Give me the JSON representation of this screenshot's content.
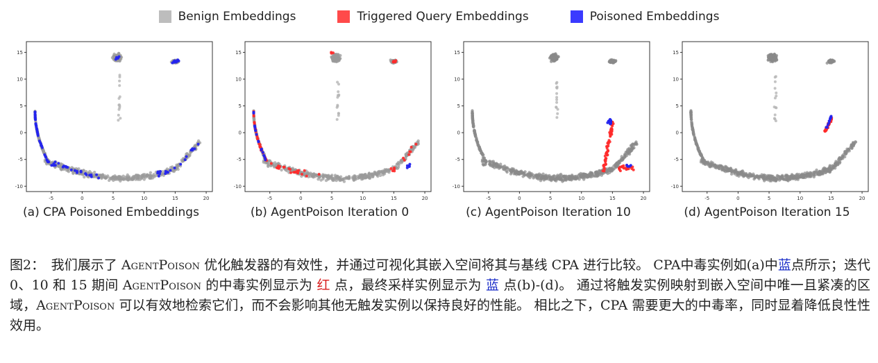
{
  "legend": [
    {
      "label": "Benign Embeddings",
      "color": "#bdbdbd"
    },
    {
      "label": "Triggered Query Embeddings",
      "color": "#ff4a4a"
    },
    {
      "label": "Poisoned Embeddings",
      "color": "#3a3aff"
    }
  ],
  "colors": {
    "benign": "#8a8a8a",
    "light": "#b5b5b5",
    "trigger": "#ff2a2a",
    "poison": "#2424ee"
  },
  "chart_data": [
    {
      "type": "scatter",
      "caption": "(a) CPA Poisoned Embeddings",
      "xlim": [
        -9,
        21
      ],
      "ylim": [
        -11,
        17
      ],
      "xticks": [
        "-5",
        "0",
        "5",
        "10",
        "15",
        "20"
      ],
      "yticks": [
        "15",
        "10",
        "5",
        "0",
        "-5",
        "-10"
      ],
      "poison_regions": [
        "left-arc",
        "bottom-curve",
        "top-cluster"
      ],
      "trigger_regions": [],
      "benign_shape": "standard"
    },
    {
      "type": "scatter",
      "caption": "(b) AgentPoison Iteration 0",
      "xlim": [
        -9,
        21
      ],
      "ylim": [
        -11,
        17
      ],
      "xticks": [
        "-5",
        "0",
        "5",
        "10",
        "15",
        "20"
      ],
      "yticks": [
        "15",
        "10",
        "5",
        "0",
        "-5",
        "-10"
      ],
      "poison_regions": [
        "left-arc-sparse",
        "bottom-right"
      ],
      "trigger_regions": [
        "left-arc",
        "bottom-curve",
        "top-cluster"
      ],
      "benign_shape": "standard"
    },
    {
      "type": "scatter",
      "caption": "(c) AgentPoison Iteration 10",
      "xlim": [
        -9,
        21
      ],
      "ylim": [
        -11,
        17
      ],
      "xticks": [
        "-5",
        "0",
        "5",
        "10",
        "15",
        "20"
      ],
      "yticks": [
        "15",
        "10",
        "5",
        "0",
        "-5",
        "-10"
      ],
      "poison_regions": [
        "streak-top",
        "bottom-right-few"
      ],
      "trigger_regions": [
        "streak",
        "bottom-right"
      ],
      "benign_shape": "dense"
    },
    {
      "type": "scatter",
      "caption": "(d) AgentPoison Iteration 15",
      "xlim": [
        -9,
        21
      ],
      "ylim": [
        -11,
        17
      ],
      "xticks": [
        "-5",
        "0",
        "5",
        "10",
        "15",
        "20"
      ],
      "yticks": [
        "15",
        "10",
        "5",
        "0",
        "-5",
        "-10"
      ],
      "poison_regions": [
        "tight-cluster"
      ],
      "trigger_regions": [
        "tight-cluster"
      ],
      "benign_shape": "dense"
    }
  ],
  "caption": {
    "p1": "图2：　我们展示了 ",
    "agentpoison": "AgentPoison",
    "p2": " 优化触发器的有效性，并通过可视化其嵌入空间将其与基线 CPA 进行比较。 CPA中毒实例如(a)中",
    "blue1": "蓝",
    "p3": "点所示；迭代 0、10 和 15 期间 ",
    "p4": " 的中毒实例显示为 ",
    "red1": "红",
    "p5": " 点，最终采样实例显示为 ",
    "blue2": "蓝",
    "p6": " 点(b)-(d)。 通过将触发实例映射到嵌入空间中唯一且紧凑的区域，",
    "p7": " 可以有效地检索它们，而不会影响其他无触发实例以保持良好的性能。 相比之下，CPA 需要更大的中毒率，同时显着降低良性性效用。"
  }
}
